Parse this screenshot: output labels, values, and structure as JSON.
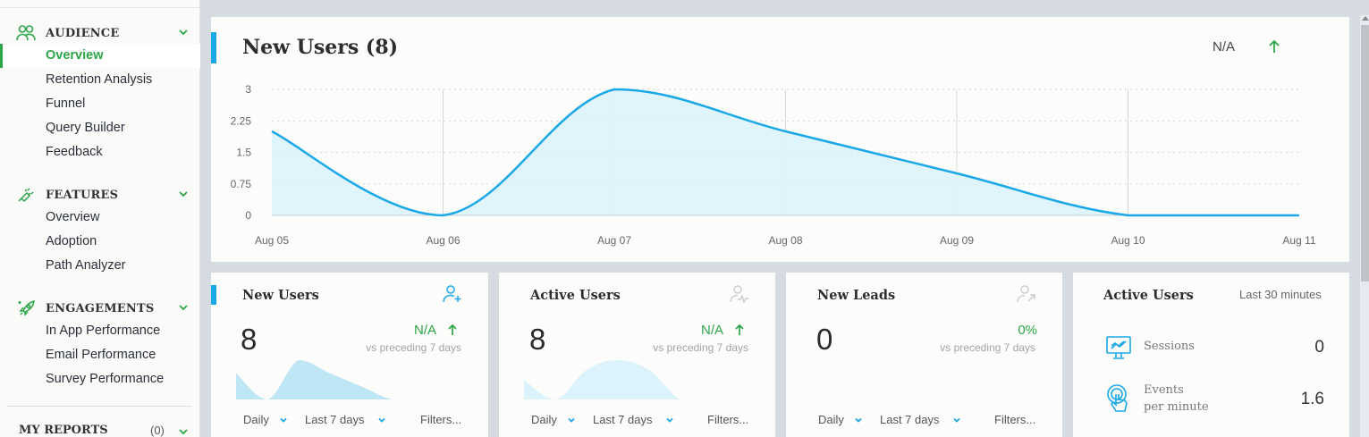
{
  "sidebar": {
    "sections": [
      {
        "title": "AUDIENCE",
        "icon": "users-icon",
        "items": [
          {
            "label": "Overview",
            "active": true
          },
          {
            "label": "Retention Analysis"
          },
          {
            "label": "Funnel"
          },
          {
            "label": "Query Builder"
          },
          {
            "label": "Feedback"
          }
        ]
      },
      {
        "title": "FEATURES",
        "icon": "plug-icon",
        "items": [
          {
            "label": "Overview"
          },
          {
            "label": "Adoption"
          },
          {
            "label": "Path Analyzer"
          }
        ]
      },
      {
        "title": "ENGAGEMENTS",
        "icon": "rocket-icon",
        "items": [
          {
            "label": "In App Performance"
          },
          {
            "label": "Email Performance"
          },
          {
            "label": "Survey Performance"
          }
        ]
      }
    ],
    "my_reports": {
      "title": "MY REPORTS",
      "count": "(0)"
    }
  },
  "main_chart": {
    "title": "New Users (8)",
    "delta": "N/A",
    "delta_icon": "arrow-up-icon"
  },
  "chart_data": {
    "type": "area",
    "title": "New Users (8)",
    "categories": [
      "Aug 05",
      "Aug 06",
      "Aug 07",
      "Aug 08",
      "Aug 09",
      "Aug 10",
      "Aug 11"
    ],
    "series": [
      {
        "name": "New Users",
        "values": [
          2,
          0,
          3,
          2,
          1,
          0,
          0
        ]
      }
    ],
    "yticks": [
      "0",
      "0.75",
      "1.5",
      "2.25",
      "3"
    ],
    "ylim": [
      0,
      3
    ],
    "xlabel": "",
    "ylabel": "",
    "grid": true,
    "color": "#1aa8e8",
    "fill": "#dcf3fb"
  },
  "cards": [
    {
      "title": "New Users",
      "icon": "user-plus-icon",
      "value": "8",
      "delta": "N/A",
      "show_arrow": true,
      "vs": "vs preceding 7 days",
      "spark": [
        2,
        0,
        3,
        2,
        1,
        0,
        0
      ],
      "interval": "Daily",
      "range": "Last 7 days",
      "filters": "Filters...",
      "accent": true
    },
    {
      "title": "Active Users",
      "icon": "user-pulse-icon",
      "value": "8",
      "delta": "N/A",
      "show_arrow": true,
      "vs": "vs preceding 7 days",
      "spark": [
        1,
        0,
        1.5,
        2,
        1.5,
        0,
        0
      ],
      "interval": "Daily",
      "range": "Last 7 days",
      "filters": "Filters...",
      "accent": false
    },
    {
      "title": "New Leads",
      "icon": "user-arrow-icon",
      "value": "0",
      "delta": "0%",
      "show_arrow": false,
      "vs": "vs preceding 7 days",
      "spark": [],
      "interval": "Daily",
      "range": "Last 7 days",
      "filters": "Filters...",
      "accent": false
    }
  ],
  "active_users": {
    "title": "Active Users",
    "subtitle": "Last 30 minutes",
    "rows": [
      {
        "label": "Sessions",
        "value": "0",
        "icon": "monitor-chart-icon"
      },
      {
        "label": "Events per minute",
        "label_line1": "Events",
        "label_line2": "per minute",
        "value": "1.6",
        "icon": "touch-icon"
      }
    ]
  },
  "colors": {
    "accent": "#1aa8e8",
    "green": "#2ca548",
    "background": "#d5dbe0"
  }
}
